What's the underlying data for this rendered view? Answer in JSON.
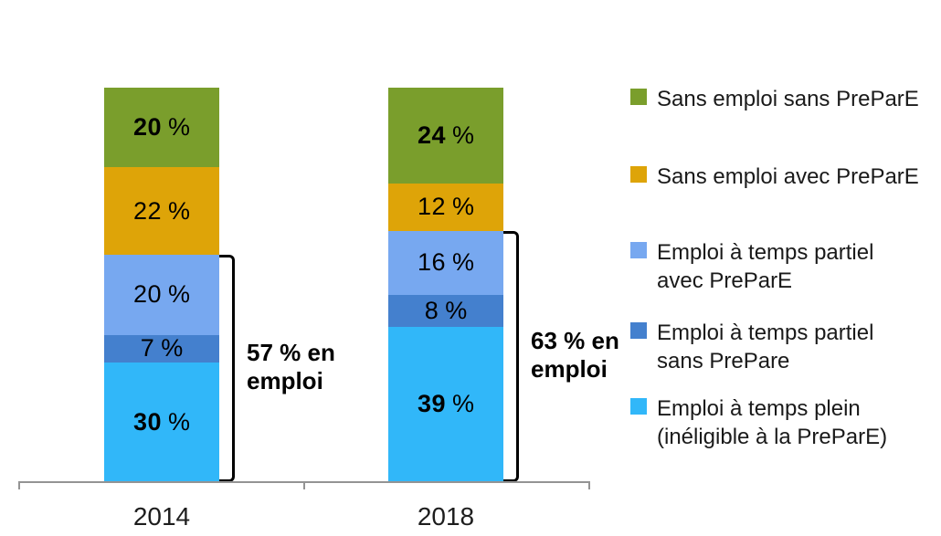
{
  "chart_data": {
    "type": "bar",
    "stacked": true,
    "orientation": "vertical",
    "title": "",
    "categories": [
      "2014",
      "2018"
    ],
    "unit": "%",
    "value_label_format": "{v} %",
    "series": [
      {
        "name": "Emploi à temps plein (inéligible à la PreParE)",
        "color": "#31B7F9",
        "values": [
          30,
          39
        ],
        "bold_value_labels": true
      },
      {
        "name": "Emploi à temps partiel sans PrePare",
        "color": "#4480CE",
        "values": [
          7,
          8
        ],
        "bold_value_labels": false
      },
      {
        "name": "Emploi à temps partiel avec PreParE",
        "color": "#77A8F0",
        "values": [
          20,
          16
        ],
        "bold_value_labels": false
      },
      {
        "name": "Sans emploi avec PreParE",
        "color": "#DEA408",
        "values": [
          22,
          12
        ],
        "bold_value_labels": false
      },
      {
        "name": "Sans emploi sans PreParE",
        "color": "#7A9E2C",
        "values": [
          20,
          24
        ],
        "bold_value_labels": true
      }
    ],
    "annotations": [
      {
        "category": "2014",
        "text": "57 % en\nemploi",
        "total_pct": 57,
        "covers": "bottom 3 series (en emploi)"
      },
      {
        "category": "2018",
        "text": "63 % en\nemploi",
        "total_pct": 63,
        "covers": "bottom 3 series (en emploi)"
      }
    ],
    "legend": {
      "position": "right",
      "items": [
        {
          "label": "Sans emploi sans PreParE",
          "color": "#7A9E2C"
        },
        {
          "label": "Sans emploi avec PreParE",
          "color": "#DEA408"
        },
        {
          "label": "Emploi à temps partiel\navec PreParE",
          "color": "#77A8F0"
        },
        {
          "label": "Emploi à temps partiel\nsans PrePare",
          "color": "#4480CE"
        },
        {
          "label": "Emploi à temps plein\n(inéligible à la PreParE)",
          "color": "#31B7F9"
        }
      ]
    },
    "axes": {
      "x_tick_labels": [
        "2014",
        "2018"
      ],
      "y_axis_visible": false,
      "gridlines": false,
      "axis_line_color": "#949494"
    }
  }
}
